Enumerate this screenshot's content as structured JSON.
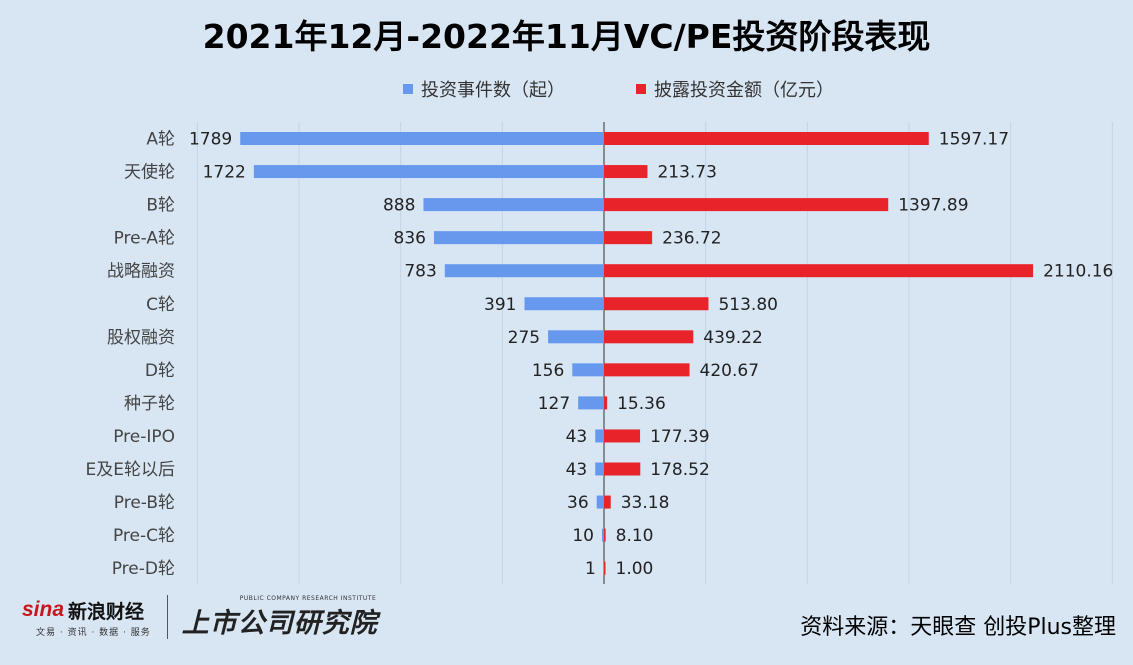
{
  "title": "2021年12月-2022年11月VC/PE投资阶段表现",
  "legend": {
    "left_label": "投资事件数（起）",
    "right_label": "披露投资金额（亿元）"
  },
  "colors": {
    "left": "#6699ee",
    "right": "#e8242a",
    "axis": "#333333",
    "grid": "#c4d4e6"
  },
  "chart_data": {
    "type": "bar",
    "orientation": "horizontal-diverging",
    "categories": [
      "A轮",
      "天使轮",
      "B轮",
      "Pre-A轮",
      "战略融资",
      "C轮",
      "股权融资",
      "D轮",
      "种子轮",
      "Pre-IPO",
      "E及E轮以后",
      "Pre-B轮",
      "Pre-C轮",
      "Pre-D轮"
    ],
    "series": [
      {
        "name": "投资事件数（起）",
        "values": [
          1789,
          1722,
          888,
          836,
          783,
          391,
          275,
          156,
          127,
          43,
          43,
          36,
          10,
          1
        ],
        "labels": [
          "1789",
          "1722",
          "888",
          "836",
          "783",
          "391",
          "275",
          "156",
          "127",
          "43",
          "43",
          "36",
          "10",
          "1"
        ]
      },
      {
        "name": "披露投资金额（亿元）",
        "values": [
          1597.17,
          213.73,
          1397.89,
          236.72,
          2110.16,
          513.8,
          439.22,
          420.67,
          15.36,
          177.39,
          178.52,
          33.18,
          8.1,
          1.0
        ],
        "labels": [
          "1597.17",
          "213.73",
          "1397.89",
          "236.72",
          "2110.16",
          "513.80",
          "439.22",
          "420.67",
          "15.36",
          "177.39",
          "178.52",
          "33.18",
          "8.10",
          "1.00"
        ]
      }
    ],
    "xlim": [
      -2000,
      2500
    ],
    "grid": true,
    "legend_position": "top"
  },
  "footer": {
    "sina_brand": "sina",
    "sina_name": "新浪财经",
    "sina_sub": "文易 · 资讯 · 数据 · 服务",
    "research_en": "PUBLIC COMPANY RESEARCH INSTITUTE",
    "research_name": "上市公司研究院",
    "source": "资料来源：天眼查 创投Plus整理"
  }
}
